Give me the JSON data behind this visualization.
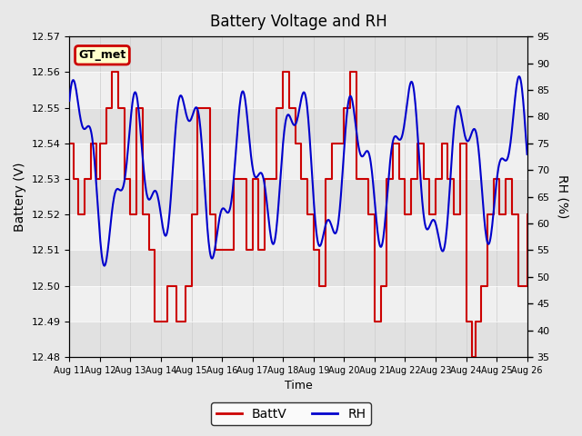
{
  "title": "Battery Voltage and RH",
  "xlabel": "Time",
  "ylabel_left": "Battery (V)",
  "ylabel_right": "RH (%)",
  "annotation": "GT_met",
  "xlim_days": [
    0,
    15
  ],
  "ylim_left": [
    12.48,
    12.57
  ],
  "ylim_right": [
    35,
    95
  ],
  "yticks_left": [
    12.48,
    12.49,
    12.5,
    12.51,
    12.52,
    12.53,
    12.54,
    12.55,
    12.56,
    12.57
  ],
  "yticks_right": [
    35,
    40,
    45,
    50,
    55,
    60,
    65,
    70,
    75,
    80,
    85,
    90,
    95
  ],
  "xtick_labels": [
    "Aug 11",
    "Aug 12",
    "Aug 13",
    "Aug 14",
    "Aug 15",
    "Aug 16",
    "Aug 17",
    "Aug 18",
    "Aug 19",
    "Aug 20",
    "Aug 21",
    "Aug 22",
    "Aug 23",
    "Aug 24",
    "Aug 25",
    "Aug 26"
  ],
  "color_batt": "#cc0000",
  "color_rh": "#0000cc",
  "bg_outer": "#e8e8e8",
  "bg_inner": "#f0f0f0",
  "bg_band1": "#dcdcdc",
  "bg_band2": "#f0f0f0",
  "annotation_bg": "#ffffcc",
  "annotation_border": "#cc0000"
}
